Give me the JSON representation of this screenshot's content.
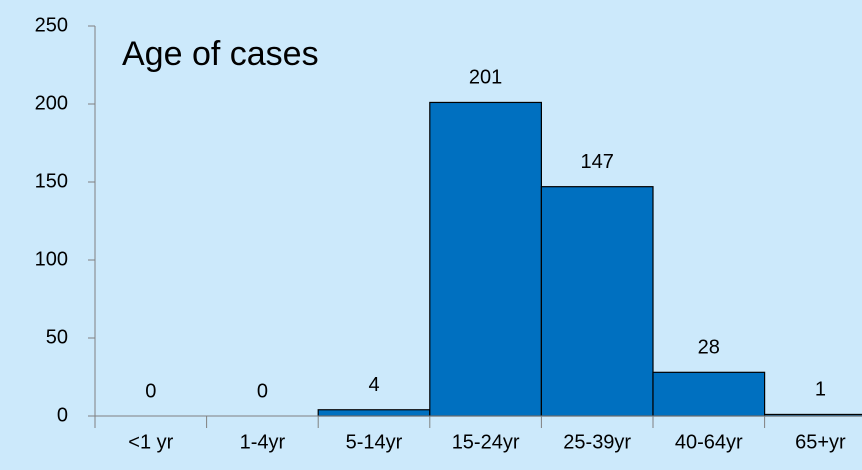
{
  "chart_data": {
    "type": "bar",
    "title": "Age of cases",
    "categories": [
      "<1 yr",
      "1-4yr",
      "5-14yr",
      "15-24yr",
      "25-39yr",
      "40-64yr",
      "65+yr"
    ],
    "values": [
      0,
      0,
      4,
      201,
      147,
      28,
      1
    ],
    "color": "#0070c0",
    "ylim": [
      0,
      250
    ],
    "yticks": [
      0,
      50,
      100,
      150,
      200,
      250
    ],
    "grid": false
  }
}
